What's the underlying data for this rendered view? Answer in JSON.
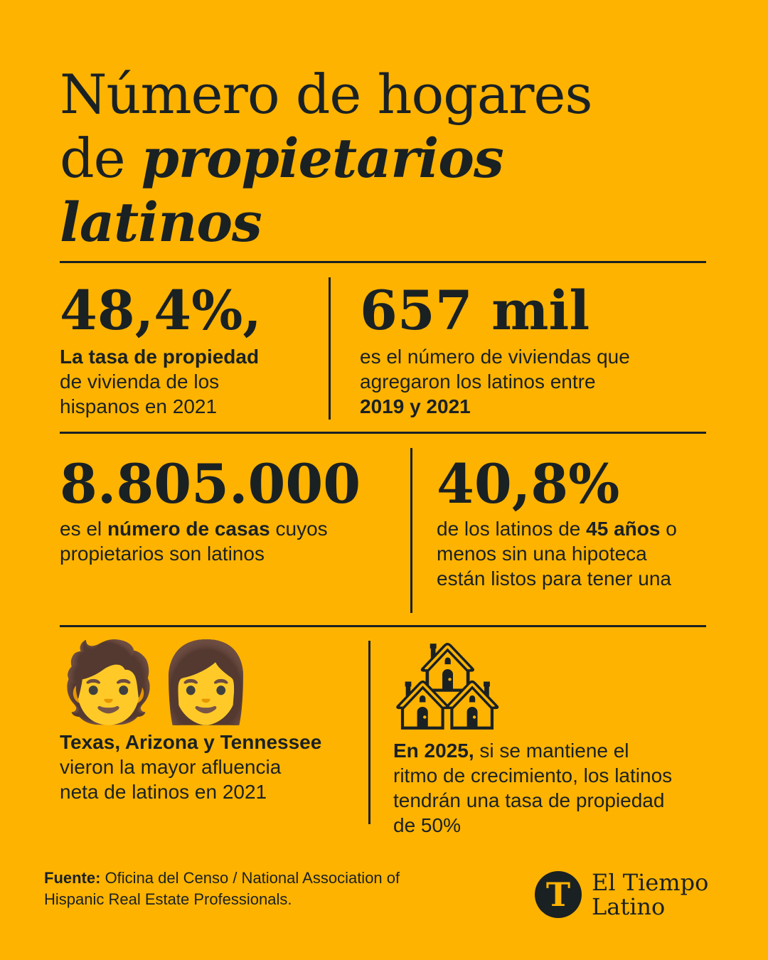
{
  "title": {
    "line1": "Número de hogares",
    "line2_plain": "de ",
    "line2_italic": "propietarios",
    "line3_italic": "latinos"
  },
  "stats": [
    {
      "value": "48,4%,",
      "text_bold": "La tasa de propiedad",
      "text_rest_1": "de vivienda de los",
      "text_rest_2": "hispanos en 2021"
    },
    {
      "value": "657 mil",
      "text_1": "es el número de viviendas que",
      "text_2": "agregaron los latinos entre",
      "text_bold": "2019 y 2021"
    },
    {
      "value": "8.805.000",
      "text_pre": "es el ",
      "text_bold": "número de casas",
      "text_post": " cuyos",
      "text_2": "propietarios son latinos"
    },
    {
      "value": "40,8%",
      "text_pre": "de los latinos de ",
      "text_bold": "45 años",
      "text_post": " o",
      "text_2": "menos sin una hipoteca",
      "text_3": "están listos para tener una"
    },
    {
      "icon": "🧑👩",
      "text_bold": "Texas, Arizona y Tennessee",
      "text_2": "vieron la mayor afluencia",
      "text_3": "neta de latinos en 2021"
    },
    {
      "icon": "🏘",
      "text_bold": "En 2025,",
      "text_post": " si se mantiene el",
      "text_2": "ritmo de crecimiento, los latinos",
      "text_3": "tendrán una tasa de propiedad",
      "text_4": "de 50%"
    }
  ],
  "footer": {
    "source_label": "Fuente:",
    "source_text_1": " Oficina del Censo / National Association of",
    "source_text_2": "Hispanic Real Estate Professionals."
  },
  "logo": {
    "mark": "T",
    "name_1": "El Tiempo",
    "name_2": "Latino"
  },
  "colors": {
    "background": "#FEB301",
    "ink": "#1a2123"
  }
}
